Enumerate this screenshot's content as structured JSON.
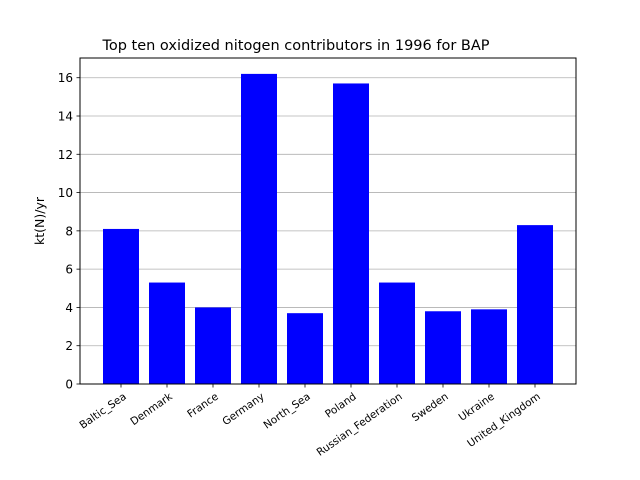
{
  "chart_data": {
    "type": "bar",
    "title": "Top ten oxidized nitogen contributors in 1996 for  BAP",
    "xlabel": "",
    "ylabel": "kt(N)/yr",
    "categories": [
      "Baltic_Sea",
      "Denmark",
      "France",
      "Germany",
      "North_Sea",
      "Poland",
      "Russian_Federation",
      "Sweden",
      "Ukraine",
      "United_Kingdom"
    ],
    "values": [
      8.1,
      5.3,
      4.0,
      16.2,
      3.7,
      15.7,
      5.3,
      3.8,
      3.9,
      8.3
    ],
    "ylim": [
      0,
      17.03
    ],
    "yticks": [
      0,
      2,
      4,
      6,
      8,
      10,
      12,
      14,
      16
    ],
    "bar_color": "#0000ff",
    "grid": "horizontal",
    "legend": "none"
  }
}
